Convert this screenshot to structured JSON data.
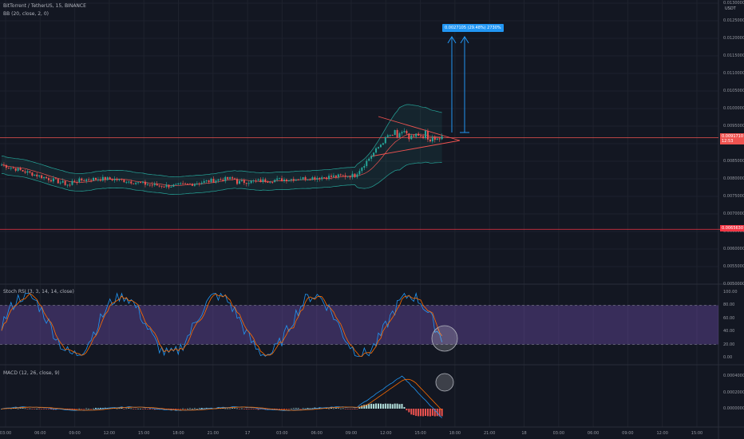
{
  "header": {
    "symbol": "BitTorrent / TetherUS, 15, BINANCE",
    "bb": "BB (20, close, 2, 0)",
    "currency": "USDT"
  },
  "price_axis": {
    "ticks": [
      "0.0130000",
      "0.0125000",
      "0.0120000",
      "0.0115000",
      "0.0110000",
      "0.0105000",
      "0.0100000",
      "0.0095000",
      "0.0090000",
      "0.0085000",
      "0.0080000",
      "0.0075000",
      "0.0070000",
      "0.0065000",
      "0.0060000",
      "0.0055000",
      "0.0050000"
    ],
    "current_price_tag": "0.0091710",
    "current_price_sub": "12:53",
    "support_tag": "0.0065630"
  },
  "measure_label": "0.0027105 (29.48%) 2730%",
  "stoch": {
    "label": "Stoch RSI (3, 3, 14, 14, close)",
    "ticks": [
      "100.00",
      "80.00",
      "60.00",
      "40.00",
      "20.00",
      "0.00"
    ]
  },
  "macd": {
    "label": "MACD (12, 26, close, 9)",
    "ticks": [
      "0.0004000",
      "0.0002000",
      "0.0000000"
    ]
  },
  "time_axis": [
    "03:00",
    "06:00",
    "09:00",
    "12:00",
    "15:00",
    "18:00",
    "21:00",
    "17",
    "03:00",
    "06:00",
    "09:00",
    "12:00",
    "15:00",
    "18:00",
    "21:00",
    "18",
    "03:00",
    "06:00",
    "09:00",
    "12:00",
    "15:00"
  ],
  "colors": {
    "up": "#26a69a",
    "down": "#ef5350",
    "rsi_band": "#7e57c2",
    "arrow": "#2196f3",
    "bb_line": "#26a69a",
    "support": "#f23645"
  }
}
